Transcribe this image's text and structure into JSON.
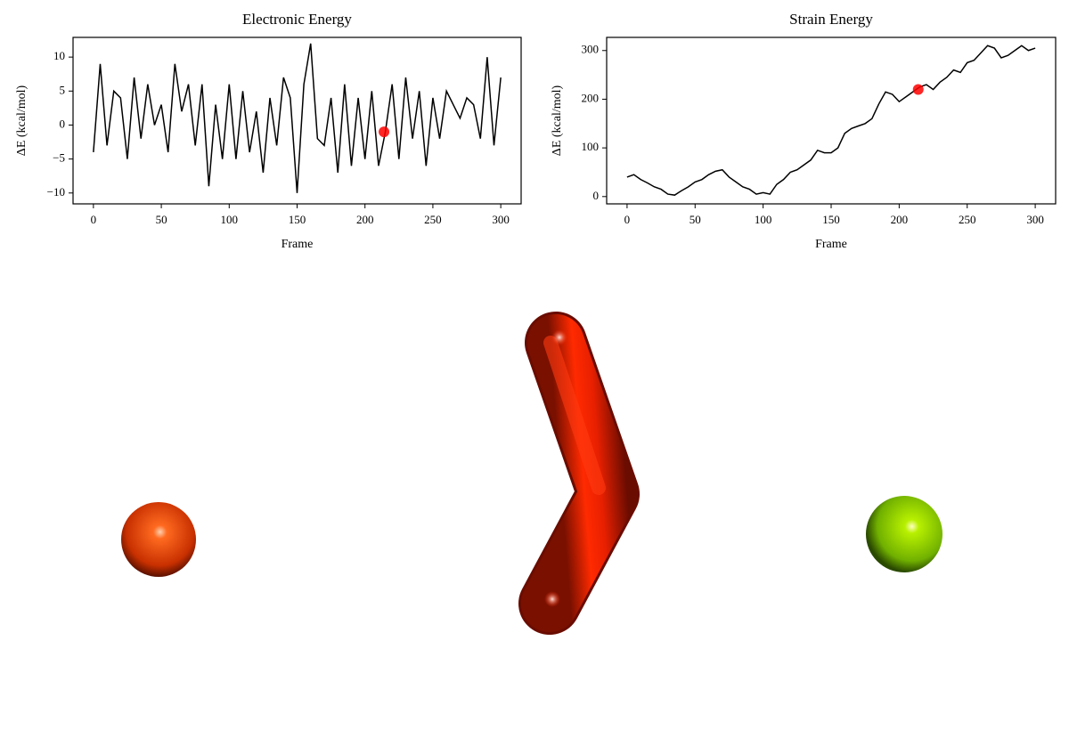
{
  "chart_data": [
    {
      "type": "line",
      "title": "Electronic Energy",
      "xlabel": "Frame",
      "ylabel": "ΔE (kcal/mol)",
      "x": [
        0,
        5,
        10,
        15,
        20,
        25,
        30,
        35,
        40,
        45,
        50,
        55,
        60,
        65,
        70,
        75,
        80,
        85,
        90,
        95,
        100,
        105,
        110,
        115,
        120,
        125,
        130,
        135,
        140,
        145,
        150,
        155,
        160,
        165,
        170,
        175,
        180,
        185,
        190,
        195,
        200,
        205,
        210,
        215,
        220,
        225,
        230,
        235,
        240,
        245,
        250,
        255,
        260,
        265,
        270,
        275,
        280,
        285,
        290,
        295,
        300
      ],
      "series": [
        {
          "name": "Electronic Energy",
          "color": "#000000",
          "values": [
            -4,
            9,
            -3,
            5,
            4,
            -5,
            7,
            -2,
            6,
            0,
            3,
            -4,
            9,
            2,
            6,
            -3,
            6,
            -9,
            3,
            -5,
            6,
            -5,
            5,
            -4,
            2,
            -7,
            4,
            -3,
            7,
            4,
            -10,
            6,
            12,
            -2,
            -3,
            4,
            -7,
            6,
            -6,
            4,
            -5,
            5,
            -6,
            -1,
            6,
            -5,
            7,
            -2,
            5,
            -6,
            4,
            -2,
            5,
            3,
            1,
            4,
            3,
            -2,
            10,
            -3,
            7
          ]
        }
      ],
      "highlight": {
        "x": 214,
        "y": -1,
        "color": "#ff0000"
      },
      "xlim": [
        -15,
        315
      ],
      "ylim": [
        -11.6,
        12.9
      ],
      "xticks": [
        0,
        50,
        100,
        150,
        200,
        250,
        300
      ],
      "yticks": [
        {
          "value": -10,
          "label": "−10"
        },
        {
          "value": -5,
          "label": "−5"
        },
        0,
        5,
        10
      ]
    },
    {
      "type": "line",
      "title": "Strain Energy",
      "xlabel": "Frame",
      "ylabel": "ΔE (kcal/mol)",
      "x": [
        0,
        5,
        10,
        15,
        20,
        25,
        30,
        35,
        40,
        45,
        50,
        55,
        60,
        65,
        70,
        75,
        80,
        85,
        90,
        95,
        100,
        105,
        110,
        115,
        120,
        125,
        130,
        135,
        140,
        145,
        150,
        155,
        160,
        165,
        170,
        175,
        180,
        185,
        190,
        195,
        200,
        205,
        210,
        215,
        220,
        225,
        230,
        235,
        240,
        245,
        250,
        255,
        260,
        265,
        270,
        275,
        280,
        285,
        290,
        295,
        300
      ],
      "series": [
        {
          "name": "Strain Energy",
          "color": "#000000",
          "values": [
            40,
            45,
            35,
            28,
            20,
            15,
            5,
            3,
            12,
            20,
            30,
            35,
            45,
            52,
            55,
            40,
            30,
            20,
            15,
            5,
            8,
            5,
            25,
            35,
            50,
            55,
            65,
            75,
            95,
            90,
            90,
            100,
            130,
            140,
            145,
            150,
            160,
            190,
            215,
            210,
            195,
            205,
            215,
            225,
            230,
            220,
            235,
            245,
            260,
            255,
            275,
            280,
            295,
            310,
            305,
            285,
            290,
            300,
            310,
            300,
            305
          ]
        }
      ],
      "highlight": {
        "x": 214,
        "y": 220,
        "color": "#ff0000"
      },
      "xlim": [
        -15,
        315
      ],
      "ylim": [
        -15,
        327
      ],
      "xticks": [
        0,
        50,
        100,
        150,
        200,
        250,
        300
      ],
      "yticks": [
        0,
        100,
        200,
        300
      ]
    }
  ]
}
